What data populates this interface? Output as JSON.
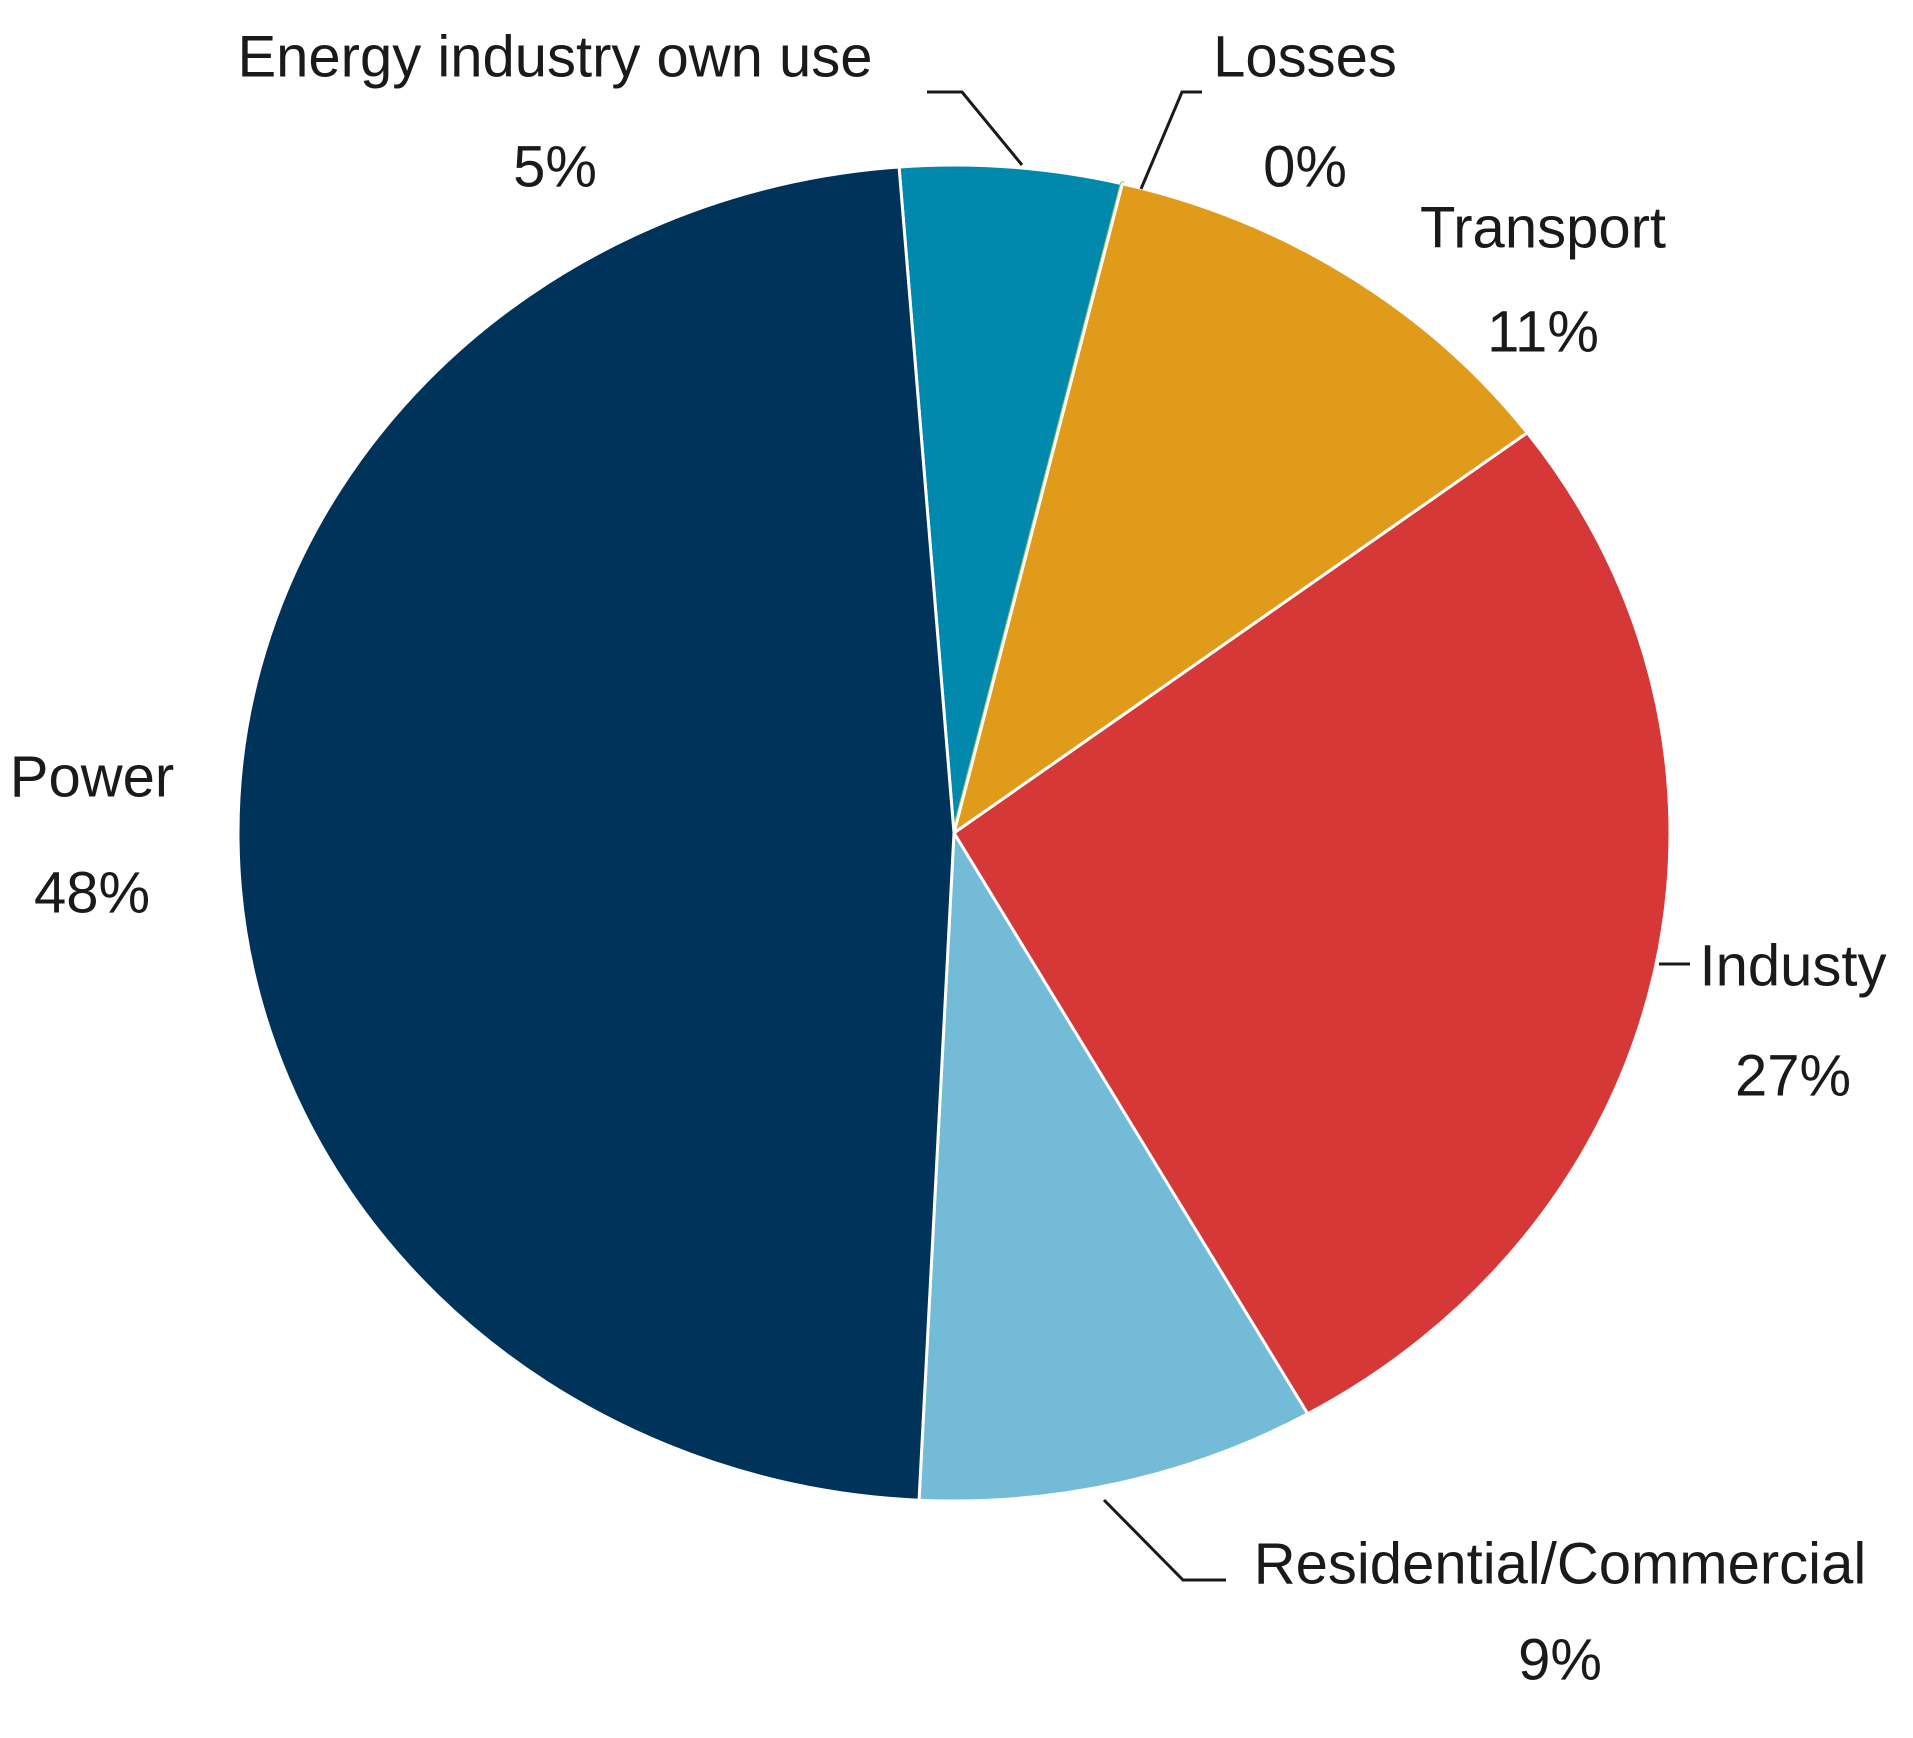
{
  "chart_data": {
    "type": "pie",
    "categories": [
      "Energy industry own use",
      "Losses",
      "Transport",
      "Industy",
      "Residential/Commercial",
      "Power"
    ],
    "values": [
      5,
      0,
      11,
      27,
      9,
      48
    ],
    "value_labels": [
      "5%",
      "0%",
      "11%",
      "27%",
      "9%",
      "48%"
    ],
    "colors": [
      "#0089ac",
      "#8dc63f",
      "#e09b1a",
      "#d63737",
      "#74bbd8",
      "#00335a"
    ]
  }
}
